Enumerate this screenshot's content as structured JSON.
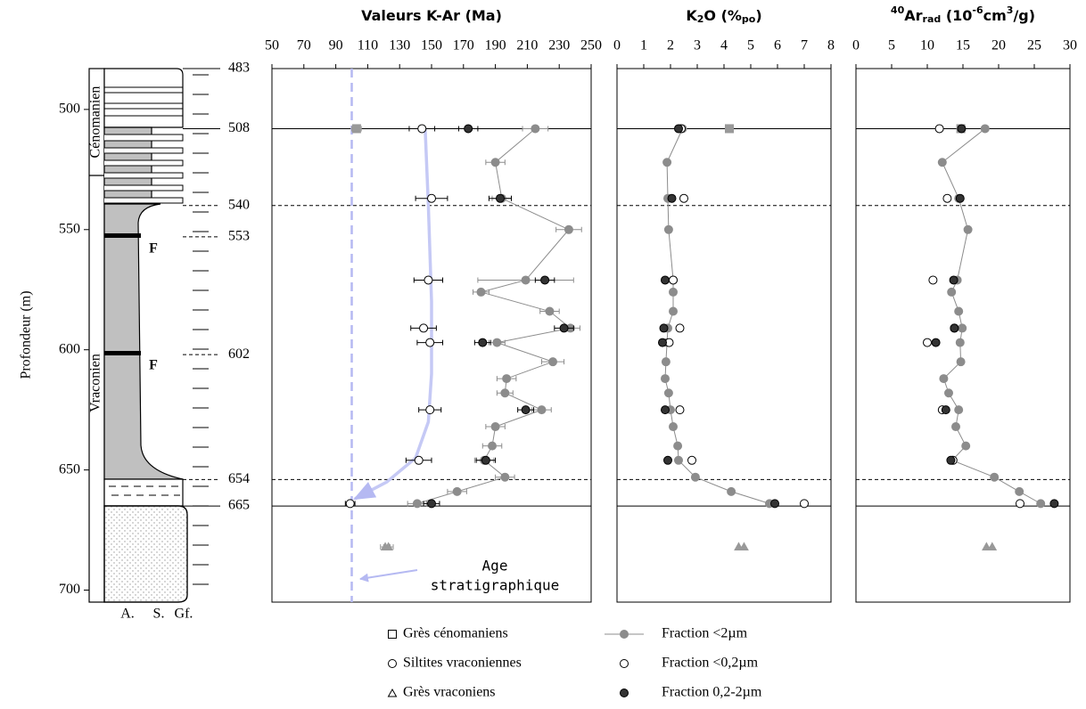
{
  "depth_axis": {
    "label": "Profondeur (m)",
    "lim": [
      483,
      705
    ],
    "ticks": [
      500,
      550,
      600,
      650,
      700
    ],
    "inverted": true
  },
  "depth_markers": [
    {
      "value": 483,
      "style": "solid",
      "extent": "column"
    },
    {
      "value": 508,
      "style": "solid",
      "extent": "full"
    },
    {
      "value": 540,
      "style": "dashed",
      "extent": "full"
    },
    {
      "value": 553,
      "style": "dashed",
      "extent": "column"
    },
    {
      "value": 602,
      "style": "dashed",
      "extent": "column"
    },
    {
      "value": 654,
      "style": "dashed",
      "extent": "full"
    },
    {
      "value": 665,
      "style": "solid",
      "extent": "full"
    }
  ],
  "lithology": {
    "stages": [
      "Cénomanien",
      "Vraconien"
    ],
    "faults": [
      "F",
      "F"
    ],
    "columns": [
      "A.",
      "S.",
      "Gf."
    ]
  },
  "legend": [
    {
      "name": "Grès cénomaniens",
      "marker": "square",
      "color": "#ffffff"
    },
    {
      "name": "Siltites vraconiennes",
      "marker": "circle",
      "color": "#ffffff"
    },
    {
      "name": "Grès vraconiens",
      "marker": "triangle",
      "color": "#ffffff"
    },
    {
      "name": "Fraction <2µm",
      "marker": "line-dot",
      "color": "#8c8c8c"
    },
    {
      "name": "Fraction <0,2µm",
      "marker": "circle",
      "color": "#ffffff"
    },
    {
      "name": "Fraction 0,2-2µm",
      "marker": "circle",
      "color": "#333333"
    }
  ],
  "chart_data": [
    {
      "type": "scatter",
      "title": [
        {
          "text": "Valeurs K-Ar (Ma)",
          "shift": "none"
        }
      ],
      "xlim": [
        50,
        250
      ],
      "xticks": [
        50,
        70,
        90,
        110,
        130,
        150,
        170,
        190,
        210,
        230,
        250
      ],
      "age_line": {
        "value": 100,
        "color": "#b5b9f2"
      },
      "trend": {
        "color": "#c5c9f5",
        "depths": [
          508,
          540,
          580,
          610,
          630,
          645,
          655,
          662
        ],
        "values": [
          146,
          148,
          150,
          150,
          148,
          140,
          122,
          102
        ]
      },
      "annotation": {
        "lines": [
          "Age",
          "stratigraphique"
        ],
        "color": "#b5b9f2"
      },
      "series": [
        {
          "marker": "square",
          "color": "#999999",
          "line": false,
          "depths": [
            508
          ],
          "values": [
            103
          ],
          "errors": [
            3
          ]
        },
        {
          "marker": "triangle",
          "color": "#999999",
          "line": false,
          "depths": [
            682,
            682
          ],
          "values": [
            121,
            123
          ],
          "errors": [
            3,
            3
          ]
        },
        {
          "marker": "circle",
          "color": "#8c8c8c",
          "line": true,
          "depths": [
            508,
            522,
            537,
            550,
            571,
            576,
            584,
            591,
            597,
            605,
            612,
            618,
            625,
            632,
            640,
            646,
            653,
            659,
            664
          ],
          "values": [
            215,
            190,
            194,
            236,
            209,
            181,
            224,
            237,
            191,
            226,
            197,
            196,
            219,
            190,
            188,
            183,
            196,
            166,
            141
          ],
          "errors": [
            8,
            6,
            6,
            8,
            30,
            5,
            6,
            6,
            5,
            7,
            6,
            5,
            6,
            6,
            6,
            6,
            6,
            6,
            6
          ]
        },
        {
          "marker": "circle",
          "color": "#ffffff",
          "line": false,
          "depths": [
            508,
            537,
            571,
            591,
            597,
            625,
            646,
            664
          ],
          "values": [
            144,
            150,
            148,
            145,
            149,
            149,
            142,
            99
          ],
          "errors": [
            8,
            10,
            9,
            8,
            8,
            7,
            8,
            3
          ]
        },
        {
          "marker": "circle",
          "color": "#333333",
          "line": false,
          "depths": [
            508,
            537,
            571,
            591,
            597,
            625,
            646,
            664
          ],
          "values": [
            173,
            193,
            221,
            233,
            182,
            209,
            184,
            150
          ],
          "errors": [
            6,
            7,
            6,
            6,
            5,
            5,
            6,
            5
          ]
        }
      ]
    },
    {
      "type": "scatter",
      "title": [
        {
          "text": "K",
          "shift": "none"
        },
        {
          "text": "2",
          "shift": "sub"
        },
        {
          "text": "O (%",
          "shift": "none"
        },
        {
          "text": "po",
          "shift": "sub"
        },
        {
          "text": ")",
          "shift": "none"
        }
      ],
      "xlim": [
        0,
        8
      ],
      "xticks": [
        0,
        1,
        2,
        3,
        4,
        5,
        6,
        7,
        8
      ],
      "series": [
        {
          "marker": "square",
          "color": "#999999",
          "line": false,
          "depths": [
            508
          ],
          "values": [
            4.2
          ]
        },
        {
          "marker": "triangle",
          "color": "#999999",
          "line": false,
          "depths": [
            682,
            682
          ],
          "values": [
            4.55,
            4.75
          ]
        },
        {
          "marker": "circle",
          "color": "#8c8c8c",
          "line": true,
          "depths": [
            508,
            522,
            537,
            550,
            571,
            576,
            584,
            591,
            597,
            605,
            612,
            618,
            625,
            632,
            640,
            646,
            653,
            659,
            664
          ],
          "values": [
            2.45,
            1.87,
            1.9,
            1.93,
            2.1,
            2.1,
            2.1,
            1.9,
            1.87,
            1.83,
            1.8,
            1.93,
            2.0,
            2.1,
            2.27,
            2.3,
            2.93,
            4.27,
            5.7
          ]
        },
        {
          "marker": "circle",
          "color": "#ffffff",
          "line": false,
          "depths": [
            508,
            537,
            571,
            591,
            597,
            625,
            646,
            664
          ],
          "values": [
            2.4,
            2.5,
            2.1,
            2.35,
            1.95,
            2.35,
            2.8,
            7.0
          ]
        },
        {
          "marker": "circle",
          "color": "#333333",
          "line": false,
          "depths": [
            508,
            537,
            571,
            591,
            597,
            625,
            646,
            664
          ],
          "values": [
            2.3,
            2.05,
            1.8,
            1.75,
            1.7,
            1.8,
            1.9,
            5.9
          ]
        }
      ]
    },
    {
      "type": "scatter",
      "title": [
        {
          "text": "40",
          "shift": "sup"
        },
        {
          "text": "Ar",
          "shift": "none"
        },
        {
          "text": "rad",
          "shift": "sub"
        },
        {
          "text": " (10",
          "shift": "none"
        },
        {
          "text": "-6",
          "shift": "sup"
        },
        {
          "text": "cm",
          "shift": "none"
        },
        {
          "text": "3",
          "shift": "sup"
        },
        {
          "text": "/g)",
          "shift": "none"
        }
      ],
      "xlim": [
        0,
        30
      ],
      "xticks": [
        0,
        5,
        10,
        15,
        20,
        25,
        30
      ],
      "series": [
        {
          "marker": "square",
          "color": "#999999",
          "line": false,
          "depths": [
            508
          ],
          "values": [
            14.7
          ]
        },
        {
          "marker": "triangle",
          "color": "#999999",
          "line": false,
          "depths": [
            682,
            682
          ],
          "values": [
            18.3,
            19.1
          ]
        },
        {
          "marker": "circle",
          "color": "#8c8c8c",
          "line": true,
          "depths": [
            508,
            522,
            537,
            550,
            571,
            576,
            584,
            591,
            597,
            605,
            612,
            618,
            625,
            632,
            640,
            646,
            653,
            659,
            664
          ],
          "values": [
            18.1,
            12.1,
            14.4,
            15.7,
            14.2,
            13.4,
            14.4,
            14.9,
            14.6,
            14.7,
            12.3,
            13.0,
            14.4,
            14.0,
            15.4,
            13.5,
            19.4,
            22.9,
            25.9
          ]
        },
        {
          "marker": "circle",
          "color": "#ffffff",
          "line": false,
          "depths": [
            508,
            537,
            571,
            591,
            597,
            625,
            646,
            664
          ],
          "values": [
            11.7,
            12.8,
            10.8,
            13.8,
            10.0,
            12.1,
            13.6,
            23.0
          ]
        },
        {
          "marker": "circle",
          "color": "#333333",
          "line": false,
          "depths": [
            508,
            537,
            571,
            591,
            597,
            625,
            646,
            664
          ],
          "values": [
            14.8,
            14.6,
            13.7,
            13.8,
            11.2,
            12.6,
            13.3,
            27.8
          ]
        }
      ]
    }
  ]
}
